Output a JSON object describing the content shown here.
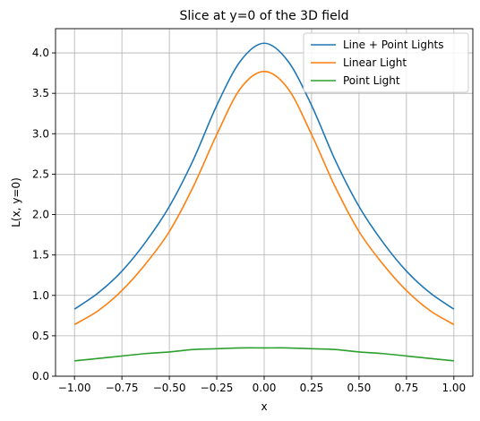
{
  "chart_data": {
    "type": "line",
    "title": "Slice at y=0 of the 3D field",
    "xlabel": "x",
    "ylabel": "L(x, y=0)",
    "xlim": [
      -1.1,
      1.1
    ],
    "ylim": [
      0.0,
      4.3
    ],
    "xticks": [
      -1.0,
      -0.75,
      -0.5,
      -0.25,
      0.0,
      0.25,
      0.5,
      0.75,
      1.0
    ],
    "xtick_labels": [
      "−1.00",
      "−0.75",
      "−0.50",
      "−0.25",
      "0.00",
      "0.25",
      "0.50",
      "0.75",
      "1.00"
    ],
    "yticks": [
      0.0,
      0.5,
      1.0,
      1.5,
      2.0,
      2.5,
      3.0,
      3.5,
      4.0
    ],
    "ytick_labels": [
      "0.0",
      "0.5",
      "1.0",
      "1.5",
      "2.0",
      "2.5",
      "3.0",
      "3.5",
      "4.0"
    ],
    "grid": true,
    "legend_position": "top-right",
    "x": [
      -1.0,
      -0.875,
      -0.75,
      -0.625,
      -0.5,
      -0.375,
      -0.25,
      -0.125,
      0.0,
      0.125,
      0.25,
      0.375,
      0.5,
      0.625,
      0.75,
      0.875,
      1.0
    ],
    "series": [
      {
        "name": "Line + Point Lights",
        "color": "#1f77b4",
        "values": [
          0.83,
          1.03,
          1.3,
          1.66,
          2.1,
          2.67,
          3.35,
          3.9,
          4.12,
          3.9,
          3.35,
          2.67,
          2.1,
          1.66,
          1.3,
          1.03,
          0.83
        ]
      },
      {
        "name": "Linear Light",
        "color": "#ff7f0e",
        "values": [
          0.64,
          0.81,
          1.06,
          1.39,
          1.79,
          2.34,
          2.99,
          3.56,
          3.77,
          3.56,
          2.99,
          2.34,
          1.79,
          1.39,
          1.06,
          0.81,
          0.64
        ]
      },
      {
        "name": "Point Light",
        "color": "#2ca02c",
        "values": [
          0.19,
          0.22,
          0.25,
          0.28,
          0.3,
          0.33,
          0.34,
          0.35,
          0.35,
          0.35,
          0.34,
          0.33,
          0.3,
          0.28,
          0.25,
          0.22,
          0.19
        ]
      }
    ]
  }
}
